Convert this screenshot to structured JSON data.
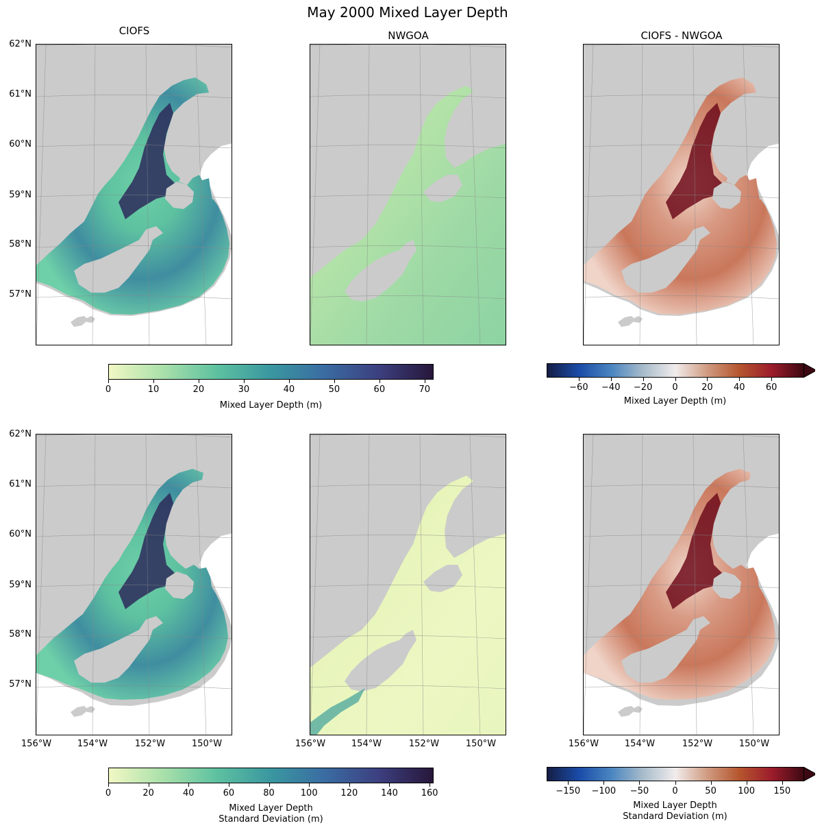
{
  "figure": {
    "title": "May 2000 Mixed Layer Depth",
    "panel_titles": [
      "CIOFS",
      "NWGOA",
      "CIOFS - NWGOA"
    ],
    "lat_labels": [
      "62°N",
      "61°N",
      "60°N",
      "59°N",
      "58°N",
      "57°N"
    ],
    "lon_labels": [
      "156°W",
      "154°W",
      "152°W",
      "150°W"
    ]
  },
  "colorbars": {
    "top_seq": {
      "ticks": [
        "0",
        "10",
        "20",
        "30",
        "40",
        "50",
        "60",
        "70"
      ],
      "label_line1": "Mixed Layer Depth (m)",
      "min": 0,
      "max": 72,
      "colors": [
        "#f2f8c4",
        "#a9e0aa",
        "#5dc1a0",
        "#3a97a0",
        "#3a6ca2",
        "#3c3f7f",
        "#27173a"
      ]
    },
    "top_div": {
      "ticks": [
        "−60",
        "−40",
        "−20",
        "0",
        "20",
        "40",
        "60"
      ],
      "label_line1": "Mixed Layer Depth (m)",
      "min": -80,
      "max": 80,
      "colors": [
        "#151d44",
        "#1a4ca8",
        "#4a85c0",
        "#a8bccb",
        "#f1ecec",
        "#cf9a80",
        "#b5552e",
        "#9c1c2c",
        "#3c0912"
      ]
    },
    "bottom_seq": {
      "ticks": [
        "0",
        "20",
        "40",
        "60",
        "80",
        "100",
        "120",
        "140",
        "160"
      ],
      "label_line1": "Mixed Layer Depth",
      "label_line2": "Standard Deviation (m)",
      "min": 0,
      "max": 162,
      "colors": [
        "#f2f8c4",
        "#a9e0aa",
        "#5dc1a0",
        "#3a97a0",
        "#3a6ca2",
        "#3c3f7f",
        "#27173a"
      ]
    },
    "bottom_div": {
      "ticks": [
        "−150",
        "−100",
        "−50",
        "0",
        "50",
        "100",
        "150"
      ],
      "label_line1": "Mixed Layer Depth",
      "label_line2": "Standard Deviation (m)",
      "min": -180,
      "max": 180,
      "colors": [
        "#151d44",
        "#1a4ca8",
        "#4a85c0",
        "#a8bccb",
        "#f1ecec",
        "#cf9a80",
        "#b5552e",
        "#9c1c2c",
        "#3c0912"
      ]
    }
  },
  "colors": {
    "land": "#cbcbcb",
    "grid": "#888888"
  }
}
